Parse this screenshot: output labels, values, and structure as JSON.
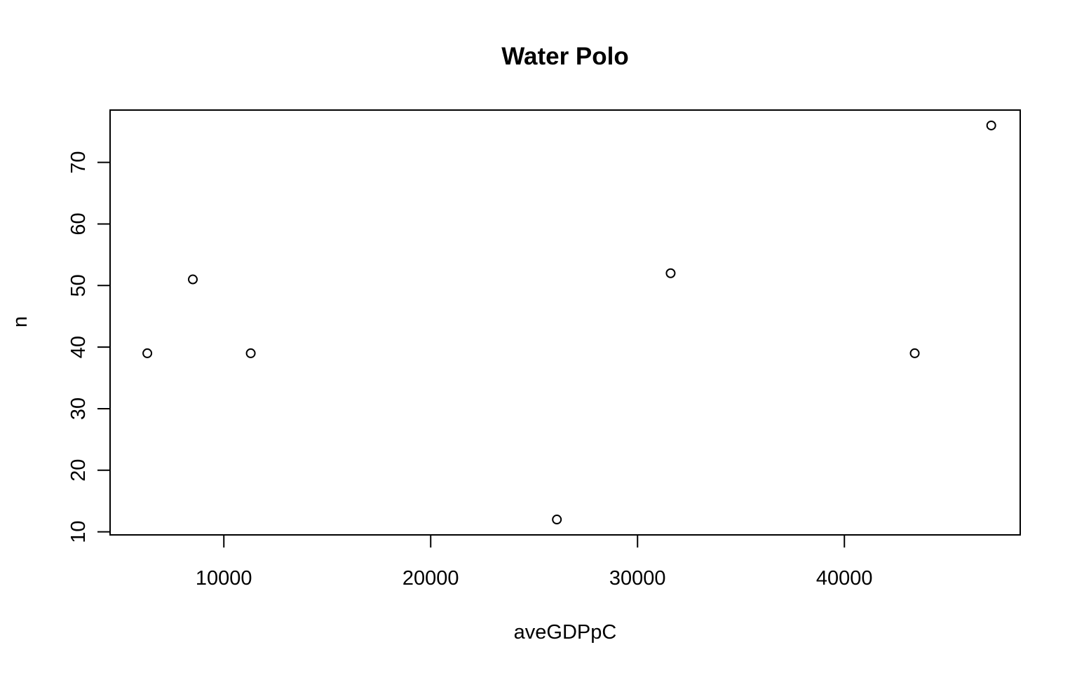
{
  "chart_data": {
    "type": "scatter",
    "title": "Water Polo",
    "xlabel": "aveGDPpC",
    "ylabel": "n",
    "xlim": [
      4500,
      48500
    ],
    "ylim": [
      9.5,
      78.5
    ],
    "x_ticks": [
      10000,
      20000,
      30000,
      40000
    ],
    "y_ticks": [
      10,
      20,
      30,
      40,
      50,
      60,
      70
    ],
    "grid": false,
    "marker": "open-circle",
    "points": [
      {
        "x": 6300,
        "y": 39
      },
      {
        "x": 8500,
        "y": 51
      },
      {
        "x": 11300,
        "y": 39
      },
      {
        "x": 26100,
        "y": 12
      },
      {
        "x": 31600,
        "y": 52
      },
      {
        "x": 43400,
        "y": 39
      },
      {
        "x": 47100,
        "y": 76
      }
    ]
  }
}
